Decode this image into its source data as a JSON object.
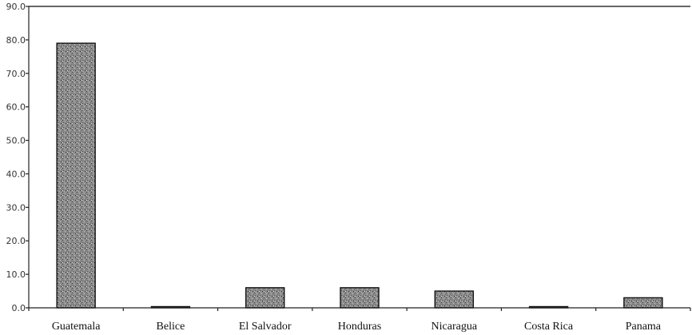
{
  "chart_data": {
    "type": "bar",
    "title": "",
    "xlabel": "",
    "ylabel": "",
    "ylim": [
      0,
      90
    ],
    "yticks": [
      "0.0",
      "10.0",
      "20.0",
      "30.0",
      "40.0",
      "50.0",
      "60.0",
      "70.0",
      "80.0",
      "90.0"
    ],
    "categories": [
      "Guatemala",
      "Belice",
      "El Salvador",
      "Honduras",
      "Nicaragua",
      "Costa Rica",
      "Panama"
    ],
    "values": [
      79.0,
      0.2,
      6.0,
      6.0,
      5.0,
      0.2,
      3.0
    ],
    "grid": false,
    "legend": "none",
    "colors": {
      "bar": "#8a8a8a",
      "bar_edge": "#111111",
      "axis": "#222222"
    }
  }
}
